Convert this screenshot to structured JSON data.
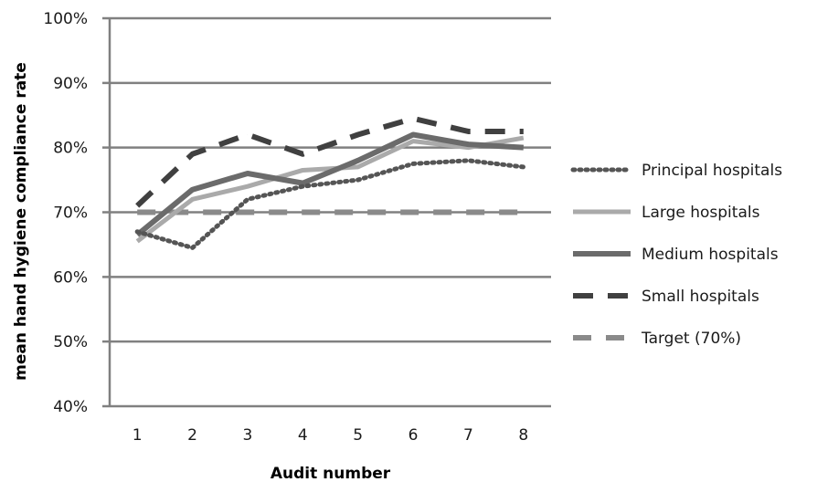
{
  "chart_data": {
    "type": "line",
    "title": "",
    "xlabel": "Audit number",
    "ylabel": "mean hand hygiene compliance rate",
    "categories": [
      "1",
      "2",
      "3",
      "4",
      "5",
      "6",
      "7",
      "8"
    ],
    "ylim": [
      40,
      100
    ],
    "y_unit": "%",
    "y_ticks": [
      "40%",
      "50%",
      "60%",
      "70%",
      "80%",
      "90%",
      "100%"
    ],
    "y_tick_values": [
      40,
      50,
      60,
      70,
      80,
      90,
      100
    ],
    "grid": "horizontal",
    "legend_position": "right",
    "series": [
      {
        "name": "Principal hospitals",
        "values": [
          67,
          64.5,
          72,
          74,
          75,
          77.5,
          78,
          77
        ],
        "color": "#555555",
        "style": "dotted"
      },
      {
        "name": "Large hospitals",
        "values": [
          65.5,
          72,
          74,
          76.5,
          77,
          81,
          80,
          81.5
        ],
        "color": "#aaaaaa",
        "style": "solid"
      },
      {
        "name": "Medium hospitals",
        "values": [
          66.5,
          73.5,
          76,
          74.5,
          78,
          82,
          80.5,
          80
        ],
        "color": "#6b6b6b",
        "style": "solid"
      },
      {
        "name": "Small hospitals",
        "values": [
          71,
          79,
          82,
          79,
          82,
          84.5,
          82.5,
          82.5
        ],
        "color": "#404040",
        "style": "dashed"
      },
      {
        "name": "Target (70%)",
        "values": [
          70,
          70,
          70,
          70,
          70,
          70,
          70,
          70
        ],
        "color": "#8a8a8a",
        "style": "dashed"
      }
    ]
  }
}
